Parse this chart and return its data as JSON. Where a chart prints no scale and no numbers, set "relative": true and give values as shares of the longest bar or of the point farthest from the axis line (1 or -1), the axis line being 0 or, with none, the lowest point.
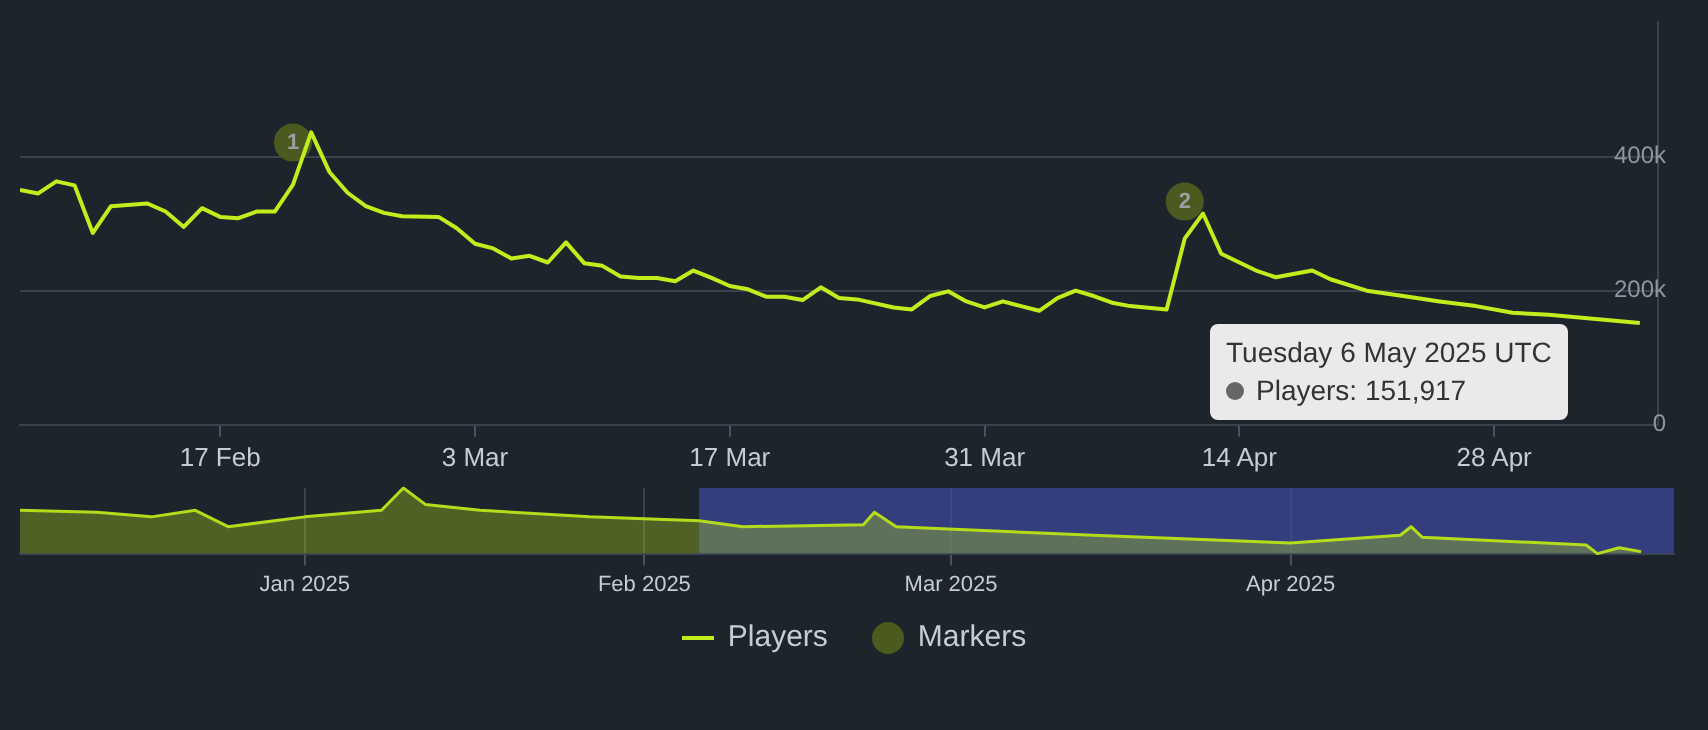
{
  "chart_data": [
    {
      "type": "line",
      "annotations": [
        "Tuesday 6 May 2025 UTC",
        "Players: 151,917",
        {
          "text": "1",
          "x": "2025-02-21",
          "y": 421000
        },
        {
          "text": "2",
          "x": "2025-04-11",
          "y": 333000
        }
      ],
      "xlim": [
        "2025-02-06",
        "2025-05-07"
      ],
      "xticks": [
        {
          "value": "2025-02-17",
          "label": "17 Feb"
        },
        {
          "value": "2025-03-03",
          "label": "3 Mar"
        },
        {
          "value": "2025-03-17",
          "label": "17 Mar"
        },
        {
          "value": "2025-03-31",
          "label": "31 Mar"
        },
        {
          "value": "2025-04-14",
          "label": "14 Apr"
        },
        {
          "value": "2025-04-28",
          "label": "28 Apr"
        }
      ],
      "ylim": [
        0,
        600000
      ],
      "yticks": [
        {
          "value": 0,
          "label": "0"
        },
        {
          "value": 200000,
          "label": "200k"
        },
        {
          "value": 400000,
          "label": "400k"
        }
      ],
      "grid": "y",
      "legend": "bottom",
      "marker": "none",
      "series": [
        {
          "name": "Players",
          "color": "#c2ec1c",
          "x": [
            "2025-02-06",
            "2025-02-07",
            "2025-02-08",
            "2025-02-09",
            "2025-02-10",
            "2025-02-11",
            "2025-02-13",
            "2025-02-14",
            "2025-02-15",
            "2025-02-16",
            "2025-02-17",
            "2025-02-18",
            "2025-02-19",
            "2025-02-20",
            "2025-02-21",
            "2025-02-22",
            "2025-02-23",
            "2025-02-24",
            "2025-02-25",
            "2025-02-26",
            "2025-02-27",
            "2025-03-01",
            "2025-03-02",
            "2025-03-03",
            "2025-03-04",
            "2025-03-05",
            "2025-03-06",
            "2025-03-07",
            "2025-03-08",
            "2025-03-09",
            "2025-03-10",
            "2025-03-11",
            "2025-03-12",
            "2025-03-13",
            "2025-03-14",
            "2025-03-15",
            "2025-03-16",
            "2025-03-17",
            "2025-03-18",
            "2025-03-19",
            "2025-03-20",
            "2025-03-21",
            "2025-03-22",
            "2025-03-23",
            "2025-03-24",
            "2025-03-26",
            "2025-03-27",
            "2025-03-28",
            "2025-03-29",
            "2025-03-30",
            "2025-03-31",
            "2025-04-01",
            "2025-04-02",
            "2025-04-03",
            "2025-04-04",
            "2025-04-05",
            "2025-04-06",
            "2025-04-07",
            "2025-04-08",
            "2025-04-10",
            "2025-04-11",
            "2025-04-12",
            "2025-04-13",
            "2025-04-14",
            "2025-04-15",
            "2025-04-16",
            "2025-04-18",
            "2025-04-19",
            "2025-04-21",
            "2025-04-23",
            "2025-04-25",
            "2025-04-27",
            "2025-04-29",
            "2025-05-01",
            "2025-05-06"
          ],
          "values": [
            350000,
            345000,
            363000,
            357000,
            286000,
            326000,
            330000,
            318000,
            295000,
            323000,
            310000,
            308000,
            318000,
            318000,
            358000,
            436000,
            377000,
            346000,
            326000,
            316000,
            311000,
            310000,
            293000,
            270000,
            263000,
            248000,
            252000,
            242000,
            272000,
            241000,
            237000,
            221000,
            219000,
            219000,
            214000,
            230000,
            219000,
            207000,
            202000,
            191000,
            191000,
            186000,
            205000,
            189000,
            187000,
            175000,
            172000,
            192000,
            199000,
            184000,
            175000,
            184000,
            177000,
            170000,
            189000,
            200000,
            192000,
            182000,
            177000,
            172000,
            278000,
            315000,
            255000,
            242000,
            229000,
            220000,
            230000,
            217000,
            200000,
            192000,
            184000,
            177000,
            167000,
            164000,
            151917
          ]
        },
        {
          "name": "Markers",
          "type": "scatter",
          "marker": "circle",
          "color": "#4b5a1f",
          "x": [
            "2025-02-21",
            "2025-04-11"
          ],
          "values": [
            421000,
            333000
          ]
        }
      ]
    },
    {
      "type": "area",
      "relative": true,
      "tick_labels": "x",
      "xlim": [
        "2024-12-06",
        "2025-05-06"
      ],
      "xticks": [
        {
          "value": "2025-01-01",
          "label": "Jan 2025"
        },
        {
          "value": "2025-02-01",
          "label": "Feb 2025"
        },
        {
          "value": "2025-03-01",
          "label": "Mar 2025"
        },
        {
          "value": "2025-04-01",
          "label": "Apr 2025"
        }
      ],
      "grid": "x",
      "bands": [
        {
          "axis": "x",
          "from": "2025-02-06",
          "to": "2025-05-06",
          "color": "#3d4a9e"
        }
      ],
      "series": [
        {
          "color": "#b5dc1a",
          "x": [
            "2024-12-06",
            "2024-12-13",
            "2024-12-18",
            "2024-12-22",
            "2024-12-25",
            "2025-01-01",
            "2025-01-08",
            "2025-01-10",
            "2025-01-12",
            "2025-01-17",
            "2025-01-27",
            "2025-02-06",
            "2025-02-10",
            "2025-02-21",
            "2025-02-22",
            "2025-02-24",
            "2025-03-14",
            "2025-04-01",
            "2025-04-11",
            "2025-04-12",
            "2025-04-13",
            "2025-04-28",
            "2025-04-29",
            "2025-05-01",
            "2025-05-03"
          ],
          "values": [
            0.66,
            0.63,
            0.56,
            0.66,
            0.41,
            0.56,
            0.66,
            1,
            0.75,
            0.66,
            0.56,
            0.5,
            0.41,
            0.44,
            0.63,
            0.41,
            0.28,
            0.16,
            0.28,
            0.41,
            0.25,
            0.13,
            0,
            0.09,
            0.03
          ]
        }
      ]
    }
  ]
}
